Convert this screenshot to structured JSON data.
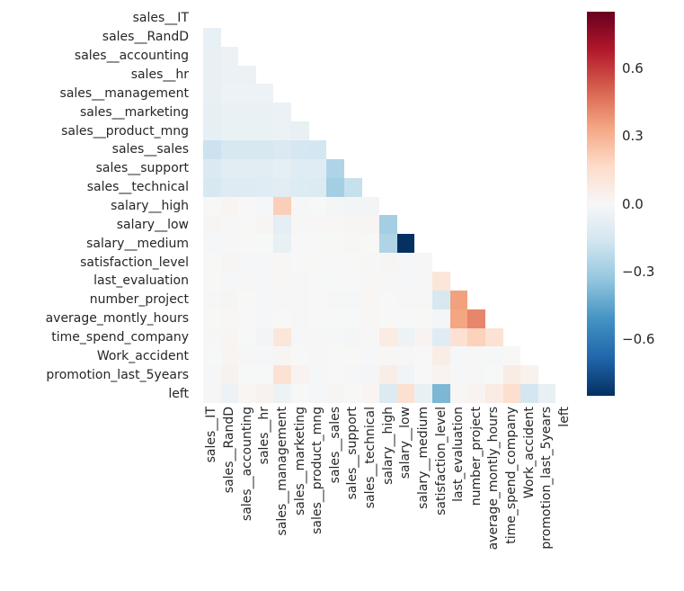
{
  "chart_data": {
    "type": "heatmap",
    "title": "",
    "description": "Lower-triangle correlation heatmap of HR dataset features (upper triangle and diagonal masked)",
    "colormap": "RdBu_r",
    "vmin": -0.85,
    "vmax": 0.85,
    "mask": "upper-triangle-including-diagonal",
    "variables": [
      "sales__IT",
      "sales__RandD",
      "sales__accounting",
      "sales__hr",
      "sales__management",
      "sales__marketing",
      "sales__product_mng",
      "sales__sales",
      "sales__support",
      "sales__technical",
      "salary__high",
      "salary__low",
      "salary__medium",
      "satisfaction_level",
      "last_evaluation",
      "number_project",
      "average_montly_hours",
      "time_spend_company",
      "Work_accident",
      "promotion_last_5years",
      "left"
    ],
    "lower_triangle": [
      [],
      [
        -0.07
      ],
      [
        -0.069,
        -0.055
      ],
      [
        -0.068,
        -0.054,
        -0.053
      ],
      [
        -0.063,
        -0.049,
        -0.049,
        -0.048
      ],
      [
        -0.074,
        -0.058,
        -0.057,
        -0.056,
        -0.052
      ],
      [
        -0.075,
        -0.06,
        -0.059,
        -0.058,
        -0.053,
        -0.062
      ],
      [
        -0.184,
        -0.145,
        -0.143,
        -0.141,
        -0.129,
        -0.152,
        -0.156
      ],
      [
        -0.125,
        -0.098,
        -0.097,
        -0.095,
        -0.087,
        -0.103,
        -0.106,
        -0.258
      ],
      [
        -0.141,
        -0.111,
        -0.109,
        -0.107,
        -0.099,
        -0.116,
        -0.119,
        -0.291,
        -0.197
      ],
      [
        -0.002,
        0.019,
        -0.002,
        -0.012,
        0.209,
        -0.005,
        -0.003,
        -0.013,
        -0.021,
        -0.024
      ],
      [
        0.012,
        -0.005,
        0.003,
        0.01,
        -0.085,
        0.004,
        0.006,
        0.007,
        0.011,
        0.016,
        -0.293
      ],
      [
        -0.011,
        -0.005,
        -0.001,
        -0.003,
        -0.063,
        0.0,
        -0.004,
        0.003,
        0.007,
        0.003,
        -0.26,
        -0.847
      ],
      [
        0.003,
        0.011,
        -0.008,
        -0.011,
        0.007,
        -0.001,
        0.002,
        -0.001,
        0.002,
        -0.005,
        0.01,
        -0.01,
        0.005
      ],
      [
        0.002,
        -0.007,
        0.005,
        -0.01,
        0.007,
        -0.005,
        0.001,
        -0.003,
        -0.002,
        0.008,
        0.004,
        -0.007,
        0.005,
        0.105
      ],
      [
        0.005,
        0.012,
        0.002,
        -0.012,
        0.005,
        -0.008,
        -0.002,
        -0.005,
        -0.011,
        0.015,
        0.001,
        -0.005,
        0.004,
        -0.143,
        0.349
      ],
      [
        0.002,
        0.007,
        -0.001,
        -0.008,
        0.003,
        -0.005,
        0.001,
        -0.004,
        -0.003,
        0.009,
        0.002,
        -0.003,
        0.002,
        -0.02,
        0.34,
        0.417
      ],
      [
        0.004,
        0.016,
        -0.003,
        -0.021,
        0.103,
        -0.012,
        -0.005,
        -0.009,
        -0.015,
        0.005,
        0.072,
        -0.047,
        0.026,
        -0.101,
        0.132,
        0.197,
        0.128
      ],
      [
        -0.003,
        0.019,
        -0.006,
        -0.01,
        0.011,
        -0.002,
        0.004,
        -0.001,
        0.002,
        -0.007,
        0.008,
        -0.005,
        0.0,
        0.059,
        -0.007,
        -0.005,
        -0.01,
        0.002
      ],
      [
        -0.008,
        0.029,
        -0.003,
        -0.004,
        0.127,
        0.022,
        -0.011,
        0.0,
        -0.009,
        -0.015,
        0.057,
        -0.031,
        0.001,
        0.026,
        -0.009,
        -0.006,
        -0.004,
        0.067,
        0.039
      ],
      [
        -0.005,
        -0.047,
        0.015,
        0.028,
        -0.046,
        0.0,
        -0.011,
        0.012,
        0.003,
        0.02,
        -0.121,
        0.135,
        -0.069,
        -0.388,
        0.007,
        0.024,
        0.071,
        0.145,
        -0.155,
        -0.062
      ]
    ],
    "colorbar": {
      "position": "right",
      "ticks": [
        {
          "label": "0.6",
          "value": 0.6
        },
        {
          "label": "0.3",
          "value": 0.3
        },
        {
          "label": "0.0",
          "value": 0.0
        },
        {
          "label": "−0.3",
          "value": -0.3
        },
        {
          "label": "−0.6",
          "value": -0.6
        }
      ]
    },
    "grid": false,
    "legend": false
  },
  "colors": {
    "background": "#ffffff",
    "label_text": "#262626",
    "masked_cell": "#ffffff",
    "rdbu_r_stops": [
      "#053061",
      "#2166ac",
      "#4393c3",
      "#92c5de",
      "#d1e5f0",
      "#f7f7f7",
      "#fddbc7",
      "#f4a582",
      "#d6604d",
      "#b2182b",
      "#67001f"
    ]
  }
}
